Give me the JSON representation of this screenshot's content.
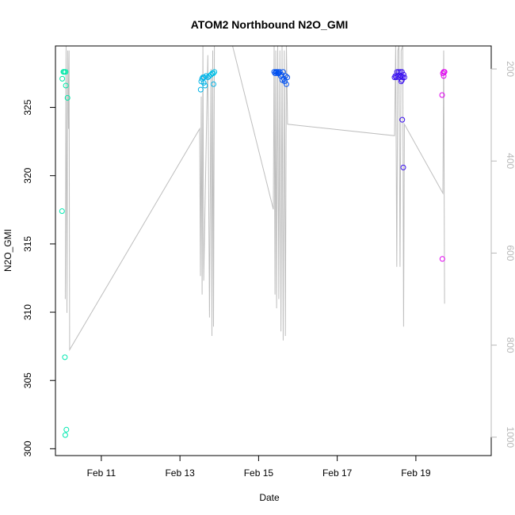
{
  "chart_data": {
    "type": "scatter",
    "title": "ATOM2 Northbound N2O_GMI",
    "xlabel": "Date",
    "ylabel": "N2O_GMI",
    "xlim": [
      "2017-02-09T20:00",
      "2017-02-20T22:00"
    ],
    "ylim": [
      299.5,
      329.5
    ],
    "y2lim": [
      1040,
      150
    ],
    "y2_reversed": true,
    "grid": false,
    "x_ticks": [
      {
        "date": "2017-02-11T00:00",
        "label": "Feb 11"
      },
      {
        "date": "2017-02-13T00:00",
        "label": "Feb 13"
      },
      {
        "date": "2017-02-15T00:00",
        "label": "Feb 15"
      },
      {
        "date": "2017-02-17T00:00",
        "label": "Feb 17"
      },
      {
        "date": "2017-02-19T00:00",
        "label": "Feb 19"
      }
    ],
    "y_ticks": [
      {
        "value": 300,
        "label": "300"
      },
      {
        "value": 305,
        "label": "305"
      },
      {
        "value": 310,
        "label": "310"
      },
      {
        "value": 315,
        "label": "315"
      },
      {
        "value": 320,
        "label": "320"
      },
      {
        "value": 325,
        "label": "325"
      }
    ],
    "y2_ticks": [
      {
        "value": 200,
        "label": "200"
      },
      {
        "value": 400,
        "label": "400"
      },
      {
        "value": 600,
        "label": "600"
      },
      {
        "value": 800,
        "label": "800"
      },
      {
        "value": 1000,
        "label": "1000"
      }
    ],
    "altitude_line_color": "#bebebe",
    "pressure_trace": [
      [
        "2017-02-10T02:00",
        700
      ],
      [
        "2017-02-10T02:30",
        150
      ],
      [
        "2017-02-10T03:00",
        730
      ],
      [
        "2017-02-10T03:30",
        160
      ],
      [
        "2017-02-10T04:00",
        330
      ],
      [
        "2017-02-10T04:20",
        160
      ],
      [
        "2017-02-10T04:40",
        810
      ],
      [
        "2017-02-13T12:00",
        330
      ],
      [
        "2017-02-13T12:30",
        650
      ],
      [
        "2017-02-13T13:00",
        260
      ],
      [
        "2017-02-13T13:30",
        690
      ],
      [
        "2017-02-13T14:00",
        150
      ],
      [
        "2017-02-13T14:30",
        660
      ],
      [
        "2017-02-13T17:00",
        170
      ],
      [
        "2017-02-13T18:00",
        740
      ],
      [
        "2017-02-13T19:00",
        200
      ],
      [
        "2017-02-13T19:30",
        780
      ],
      [
        "2017-02-13T20:00",
        160
      ],
      [
        "2017-02-13T20:30",
        760
      ],
      [
        "2017-02-13T21:00",
        150
      ],
      [
        "2017-02-14T06:00",
        120
      ],
      [
        "2017-02-15T09:00",
        505
      ],
      [
        "2017-02-15T09:30",
        150
      ],
      [
        "2017-02-15T10:00",
        690
      ],
      [
        "2017-02-15T10:30",
        160
      ],
      [
        "2017-02-15T11:00",
        720
      ],
      [
        "2017-02-15T11:40",
        150
      ],
      [
        "2017-02-15T12:20",
        700
      ],
      [
        "2017-02-15T13:00",
        160
      ],
      [
        "2017-02-15T13:40",
        770
      ],
      [
        "2017-02-15T14:20",
        150
      ],
      [
        "2017-02-15T15:00",
        790
      ],
      [
        "2017-02-15T15:40",
        160
      ],
      [
        "2017-02-15T16:20",
        780
      ],
      [
        "2017-02-15T17:00",
        150
      ],
      [
        "2017-02-15T17:40",
        320
      ],
      [
        "2017-02-18T11:00",
        345
      ],
      [
        "2017-02-18T11:40",
        150
      ],
      [
        "2017-02-18T12:20",
        630
      ],
      [
        "2017-02-18T13:00",
        160
      ],
      [
        "2017-02-18T13:40",
        150
      ],
      [
        "2017-02-18T14:20",
        630
      ],
      [
        "2017-02-18T15:00",
        160
      ],
      [
        "2017-02-18T16:00",
        150
      ],
      [
        "2017-02-18T16:30",
        760
      ],
      [
        "2017-02-18T17:00",
        320
      ],
      [
        "2017-02-19T16:30",
        470
      ],
      [
        "2017-02-19T17:00",
        160
      ],
      [
        "2017-02-19T17:30",
        710
      ]
    ],
    "points": [
      {
        "x": "2017-02-10T00:10",
        "y": 327.1,
        "color": "#00e8a8"
      },
      {
        "x": "2017-02-10T01:00",
        "y": 327.6,
        "color": "#00e8a8"
      },
      {
        "x": "2017-02-10T00:50",
        "y": 327.6,
        "color": "#00e8a8"
      },
      {
        "x": "2017-02-10T01:30",
        "y": 327.6,
        "color": "#00e8a8"
      },
      {
        "x": "2017-02-10T02:10",
        "y": 327.6,
        "color": "#00e8a8"
      },
      {
        "x": "2017-02-10T02:20",
        "y": 326.6,
        "color": "#00e8a8"
      },
      {
        "x": "2017-02-10T03:20",
        "y": 325.7,
        "color": "#00e8a8"
      },
      {
        "x": "2017-02-10T00:00",
        "y": 317.4,
        "color": "#00e8b0"
      },
      {
        "x": "2017-02-10T01:45",
        "y": 306.7,
        "color": "#00e8b0"
      },
      {
        "x": "2017-02-10T02:40",
        "y": 301.4,
        "color": "#00e8b0"
      },
      {
        "x": "2017-02-10T02:00",
        "y": 301.0,
        "color": "#00e8b0"
      },
      {
        "x": "2017-02-13T13:00",
        "y": 326.9,
        "color": "#00b4e8"
      },
      {
        "x": "2017-02-13T13:30",
        "y": 327.1,
        "color": "#00b4e8"
      },
      {
        "x": "2017-02-13T14:00",
        "y": 327.2,
        "color": "#00b4e8"
      },
      {
        "x": "2017-02-13T14:40",
        "y": 327.2,
        "color": "#00b4e8"
      },
      {
        "x": "2017-02-13T15:20",
        "y": 326.6,
        "color": "#00b4e8"
      },
      {
        "x": "2017-02-13T16:00",
        "y": 327.3,
        "color": "#00b4e8"
      },
      {
        "x": "2017-02-13T17:00",
        "y": 327.2,
        "color": "#00b4e8"
      },
      {
        "x": "2017-02-13T18:00",
        "y": 327.3,
        "color": "#00b4e8"
      },
      {
        "x": "2017-02-13T12:40",
        "y": 326.3,
        "color": "#00b4e8"
      },
      {
        "x": "2017-02-13T14:30",
        "y": 326.8,
        "color": "#00b4e8"
      },
      {
        "x": "2017-02-13T19:00",
        "y": 327.4,
        "color": "#00c0e8"
      },
      {
        "x": "2017-02-13T19:40",
        "y": 327.5,
        "color": "#00c0e8"
      },
      {
        "x": "2017-02-13T20:20",
        "y": 327.5,
        "color": "#00c0e8"
      },
      {
        "x": "2017-02-13T21:00",
        "y": 327.6,
        "color": "#00c0e8"
      },
      {
        "x": "2017-02-13T20:30",
        "y": 326.7,
        "color": "#00b4e8"
      },
      {
        "x": "2017-02-15T09:30",
        "y": 327.6,
        "color": "#0050f0"
      },
      {
        "x": "2017-02-15T10:00",
        "y": 327.5,
        "color": "#0050f0"
      },
      {
        "x": "2017-02-15T10:30",
        "y": 327.6,
        "color": "#0050f0"
      },
      {
        "x": "2017-02-15T11:00",
        "y": 327.6,
        "color": "#0050f0"
      },
      {
        "x": "2017-02-15T11:30",
        "y": 327.5,
        "color": "#0050f0"
      },
      {
        "x": "2017-02-15T12:00",
        "y": 327.6,
        "color": "#0050f0"
      },
      {
        "x": "2017-02-15T12:30",
        "y": 327.5,
        "color": "#0050f0"
      },
      {
        "x": "2017-02-15T13:00",
        "y": 327.6,
        "color": "#0050f0"
      },
      {
        "x": "2017-02-15T13:30",
        "y": 327.3,
        "color": "#0050f0"
      },
      {
        "x": "2017-02-15T14:00",
        "y": 327.4,
        "color": "#0050f0"
      },
      {
        "x": "2017-02-15T14:30",
        "y": 327.0,
        "color": "#0050f0"
      },
      {
        "x": "2017-02-15T15:00",
        "y": 327.6,
        "color": "#0050f0"
      },
      {
        "x": "2017-02-15T15:30",
        "y": 327.1,
        "color": "#0050f0"
      },
      {
        "x": "2017-02-15T16:00",
        "y": 326.9,
        "color": "#0050f0"
      },
      {
        "x": "2017-02-15T16:30",
        "y": 327.3,
        "color": "#0050f0"
      },
      {
        "x": "2017-02-15T17:00",
        "y": 326.7,
        "color": "#0050f0"
      },
      {
        "x": "2017-02-15T17:30",
        "y": 327.2,
        "color": "#0050f0"
      },
      {
        "x": "2017-02-18T11:00",
        "y": 327.2,
        "color": "#3a10f0"
      },
      {
        "x": "2017-02-18T11:30",
        "y": 327.3,
        "color": "#3a10f0"
      },
      {
        "x": "2017-02-18T12:00",
        "y": 327.2,
        "color": "#3a10f0"
      },
      {
        "x": "2017-02-18T12:30",
        "y": 327.6,
        "color": "#3a10f0"
      },
      {
        "x": "2017-02-18T13:00",
        "y": 327.3,
        "color": "#3a10f0"
      },
      {
        "x": "2017-02-18T13:30",
        "y": 327.6,
        "color": "#3a10f0"
      },
      {
        "x": "2017-02-18T14:00",
        "y": 327.2,
        "color": "#3a10f0"
      },
      {
        "x": "2017-02-18T14:30",
        "y": 327.6,
        "color": "#3a10f0"
      },
      {
        "x": "2017-02-18T15:00",
        "y": 327.3,
        "color": "#3a10f0"
      },
      {
        "x": "2017-02-18T15:30",
        "y": 327.6,
        "color": "#3a10f0"
      },
      {
        "x": "2017-02-18T16:00",
        "y": 327.2,
        "color": "#3a10f0"
      },
      {
        "x": "2017-02-18T16:30",
        "y": 327.4,
        "color": "#3a10f0"
      },
      {
        "x": "2017-02-18T17:00",
        "y": 327.2,
        "color": "#3a10f0"
      },
      {
        "x": "2017-02-18T15:30",
        "y": 327.0,
        "color": "#3a10f0"
      },
      {
        "x": "2017-02-18T15:00",
        "y": 326.9,
        "color": "#3a10f0"
      },
      {
        "x": "2017-02-18T15:40",
        "y": 324.1,
        "color": "#3a10f0"
      },
      {
        "x": "2017-02-18T16:20",
        "y": 320.6,
        "color": "#3a10f0"
      },
      {
        "x": "2017-02-19T16:30",
        "y": 327.5,
        "color": "#e000f0"
      },
      {
        "x": "2017-02-19T17:00",
        "y": 327.6,
        "color": "#e000f0"
      },
      {
        "x": "2017-02-19T17:30",
        "y": 327.6,
        "color": "#e000f0"
      },
      {
        "x": "2017-02-19T17:00",
        "y": 327.3,
        "color": "#e000f0"
      },
      {
        "x": "2017-02-19T16:00",
        "y": 325.9,
        "color": "#e000f0"
      },
      {
        "x": "2017-02-19T16:10",
        "y": 313.9,
        "color": "#e000f0"
      }
    ]
  }
}
